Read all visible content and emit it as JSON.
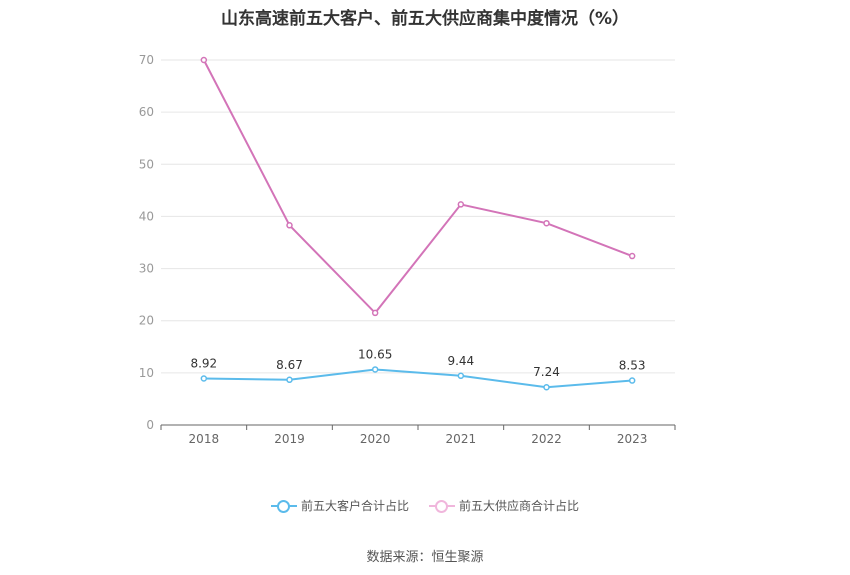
{
  "chart_data": {
    "type": "line",
    "title": "山东高速前五大客户、前五大供应商集中度情况（%）",
    "categories": [
      "2018",
      "2019",
      "2020",
      "2021",
      "2022",
      "2023"
    ],
    "series": [
      {
        "name": "前五大客户合计占比",
        "color": "#5bbbeb",
        "values": [
          8.92,
          8.67,
          10.65,
          9.44,
          7.24,
          8.53
        ],
        "labels": [
          "8.92",
          "8.67",
          "10.65",
          "9.44",
          "7.24",
          "8.53"
        ]
      },
      {
        "name": "前五大供应商合计占比",
        "color": "#d374b8",
        "values": [
          70.0,
          38.3,
          21.5,
          42.3,
          38.7,
          32.4
        ]
      }
    ],
    "ylim": [
      0,
      70
    ],
    "yticks": [
      "0",
      "10",
      "20",
      "30",
      "40",
      "50",
      "60",
      "70"
    ],
    "grid": true,
    "legend": "bottom"
  },
  "source": "数据来源：恒生聚源"
}
